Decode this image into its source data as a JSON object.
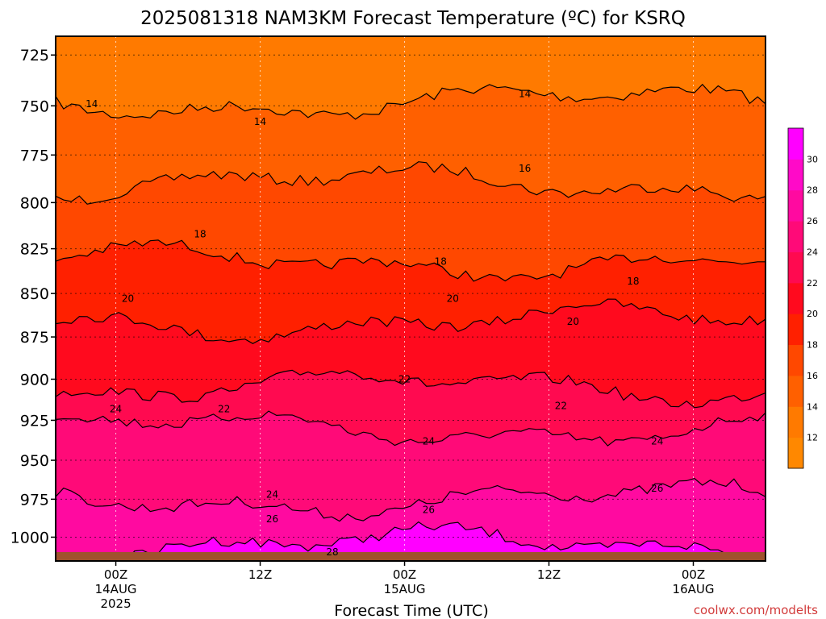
{
  "chart_data": {
    "type": "area",
    "title": "2025081318 NAM3KM Forecast Temperature (ºC) for KSRQ",
    "xlabel": "Forecast Time (UTC)",
    "ylabel": "",
    "credit": "coolwx.com/modelts",
    "y_axis": {
      "scale": "log",
      "range": [
        1016,
        716
      ],
      "ticks": [
        725,
        750,
        775,
        800,
        825,
        850,
        875,
        900,
        925,
        950,
        975,
        1000
      ],
      "tick_labels": [
        "725",
        "750",
        "775",
        "800",
        "825",
        "850",
        "875",
        "900",
        "925",
        "950",
        "975",
        "1000"
      ],
      "grid": true
    },
    "x_axis": {
      "range_hours": [
        -5,
        54
      ],
      "ticks": [
        {
          "hour": 0,
          "lines": [
            "00Z",
            "14AUG",
            "2025"
          ]
        },
        {
          "hour": 12,
          "lines": [
            "12Z"
          ]
        },
        {
          "hour": 24,
          "lines": [
            "00Z",
            "15AUG"
          ]
        },
        {
          "hour": 36,
          "lines": [
            "12Z"
          ]
        },
        {
          "hour": 48,
          "lines": [
            "00Z",
            "16AUG"
          ]
        }
      ],
      "grid": true
    },
    "contour_levels": [
      14,
      16,
      18,
      20,
      22,
      24,
      26,
      28
    ],
    "contour_labels": [
      {
        "value": "14",
        "hour": -2,
        "p": 749
      },
      {
        "value": "14",
        "hour": 12,
        "p": 758
      },
      {
        "value": "14",
        "hour": 34,
        "p": 744
      },
      {
        "value": "16",
        "hour": 34,
        "p": 782
      },
      {
        "value": "18",
        "hour": 7,
        "p": 817
      },
      {
        "value": "18",
        "hour": 27,
        "p": 832
      },
      {
        "value": "18",
        "hour": 43,
        "p": 843
      },
      {
        "value": "20",
        "hour": 1,
        "p": 853
      },
      {
        "value": "20",
        "hour": 28,
        "p": 853
      },
      {
        "value": "20",
        "hour": 38,
        "p": 866
      },
      {
        "value": "22",
        "hour": 9,
        "p": 918
      },
      {
        "value": "22",
        "hour": 24,
        "p": 900
      },
      {
        "value": "22",
        "hour": 37,
        "p": 916
      },
      {
        "value": "24",
        "hour": 0,
        "p": 918
      },
      {
        "value": "24",
        "hour": 26,
        "p": 938
      },
      {
        "value": "24",
        "hour": 45,
        "p": 938
      },
      {
        "value": "24",
        "hour": 13,
        "p": 972
      },
      {
        "value": "26",
        "hour": 13,
        "p": 988
      },
      {
        "value": "26",
        "hour": 26,
        "p": 982
      },
      {
        "value": "26",
        "hour": 45,
        "p": 968
      },
      {
        "value": "28",
        "hour": 18,
        "p": 1010
      }
    ],
    "colorbar": {
      "labels": [
        "12",
        "14",
        "16",
        "18",
        "20",
        "22",
        "24",
        "26",
        "28",
        "30"
      ],
      "colors": [
        "#ff8800",
        "#ff7a00",
        "#ff6000",
        "#ff4800",
        "#ff2000",
        "#ff0a1e",
        "#ff0a50",
        "#ff0a78",
        "#ff0aa0",
        "#ff0ac8",
        "#ff00ff"
      ]
    },
    "surface_pressure": 1010,
    "ground_color": "#a0522d"
  }
}
